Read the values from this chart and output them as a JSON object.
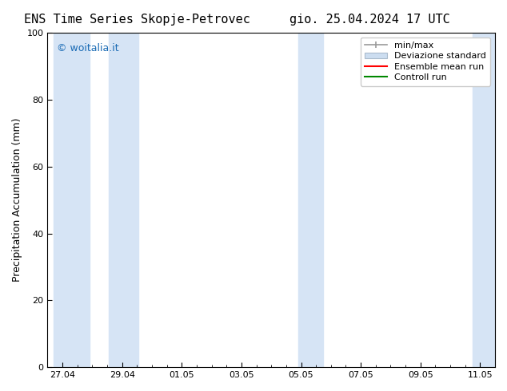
{
  "title_left": "ENS Time Series Skopje-Petrovec",
  "title_right": "gio. 25.04.2024 17 UTC",
  "ylabel": "Precipitation Accumulation (mm)",
  "ylim": [
    0,
    100
  ],
  "yticks": [
    0,
    20,
    40,
    60,
    80,
    100
  ],
  "background_color": "#ffffff",
  "plot_bg_color": "#ffffff",
  "shade_color": "#d6e4f5",
  "watermark": "© woitalia.it",
  "watermark_color": "#1a6bb5",
  "legend_labels": [
    "min/max",
    "Deviazione standard",
    "Ensemble mean run",
    "Controll run"
  ],
  "x_ticks_labels": [
    "27.04",
    "29.04",
    "01.05",
    "03.05",
    "05.05",
    "07.05",
    "09.05",
    "11.05"
  ],
  "x_tick_positions": [
    0,
    2,
    4,
    6,
    8,
    10,
    12,
    14
  ],
  "xlim": [
    -0.5,
    14.5
  ],
  "shaded_bands": [
    [
      -0.3,
      0.9
    ],
    [
      1.55,
      2.55
    ],
    [
      7.9,
      8.75
    ],
    [
      13.75,
      14.55
    ]
  ],
  "font_size_title": 11,
  "font_size_axis": 9,
  "font_size_tick": 8,
  "font_size_legend": 8,
  "font_size_watermark": 9
}
